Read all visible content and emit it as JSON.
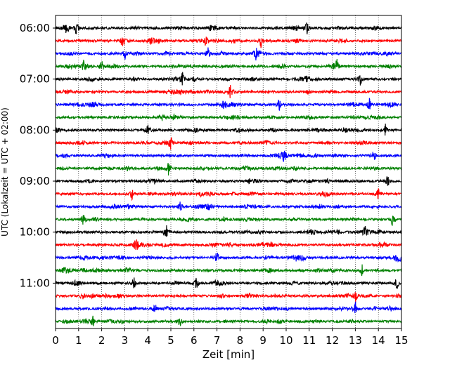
{
  "chart_data": {
    "type": "line",
    "title": "",
    "xlabel": "Zeit  [min]",
    "ylabel": "UTC (Lokalzeit = UTC + 02:00)",
    "xlim": [
      0,
      15
    ],
    "x_ticks": [
      0,
      1,
      2,
      3,
      4,
      5,
      6,
      7,
      8,
      9,
      10,
      11,
      12,
      13,
      14,
      15
    ],
    "y_tick_labels": [
      "06:00",
      "07:00",
      "08:00",
      "09:00",
      "10:00",
      "11:00"
    ],
    "grid": "vertical dotted lines at each minute",
    "legend": "none",
    "trace_colors": [
      "#000000",
      "#ff0000",
      "#0000ff",
      "#008000"
    ],
    "trace_start_times": [
      "06:00",
      "06:15",
      "06:30",
      "06:45",
      "07:00",
      "07:15",
      "07:30",
      "07:45",
      "08:00",
      "08:15",
      "08:30",
      "08:45",
      "09:00",
      "09:15",
      "09:30",
      "09:45",
      "10:00",
      "10:15",
      "10:30",
      "10:45",
      "11:00",
      "11:15",
      "11:30",
      "11:45"
    ],
    "events": [
      {
        "trace": "06:00",
        "minutes": [
          0.5,
          0.9,
          10.9
        ]
      },
      {
        "trace": "06:15",
        "minutes": [
          2.9,
          6.5,
          8.9
        ]
      },
      {
        "trace": "06:30",
        "minutes": [
          3.0,
          6.6,
          8.7
        ]
      },
      {
        "trace": "06:45",
        "minutes": [
          1.2,
          2.0,
          12.2
        ]
      },
      {
        "trace": "07:00",
        "minutes": [
          5.5,
          13.2
        ]
      },
      {
        "trace": "07:15",
        "minutes": [
          7.6
        ]
      },
      {
        "trace": "07:30",
        "minutes": [
          9.7,
          13.6
        ]
      },
      {
        "trace": "07:45",
        "minutes": [
          4.6
        ]
      },
      {
        "trace": "08:00",
        "minutes": [
          4.0,
          14.3
        ]
      },
      {
        "trace": "08:15",
        "minutes": [
          5.0
        ]
      },
      {
        "trace": "08:30",
        "minutes": [
          9.9,
          13.8
        ]
      },
      {
        "trace": "08:45",
        "minutes": [
          4.9
        ]
      },
      {
        "trace": "09:00",
        "minutes": [
          14.4
        ]
      },
      {
        "trace": "09:15",
        "minutes": [
          3.3,
          14.0
        ]
      },
      {
        "trace": "09:30",
        "minutes": [
          5.4
        ]
      },
      {
        "trace": "09:45",
        "minutes": [
          1.2,
          14.6
        ]
      },
      {
        "trace": "10:00",
        "minutes": [
          4.8,
          13.4
        ]
      },
      {
        "trace": "10:15",
        "minutes": [
          3.5
        ]
      },
      {
        "trace": "10:30",
        "minutes": [
          7.0,
          14.9
        ]
      },
      {
        "trace": "10:45",
        "minutes": [
          13.3
        ]
      },
      {
        "trace": "11:00",
        "minutes": [
          3.4,
          6.1,
          14.8
        ]
      },
      {
        "trace": "11:15",
        "minutes": [
          1.2,
          13.0
        ]
      },
      {
        "trace": "11:30",
        "minutes": [
          4.3,
          13.0
        ]
      },
      {
        "trace": "11:45",
        "minutes": [
          1.6,
          5.4
        ]
      }
    ]
  }
}
